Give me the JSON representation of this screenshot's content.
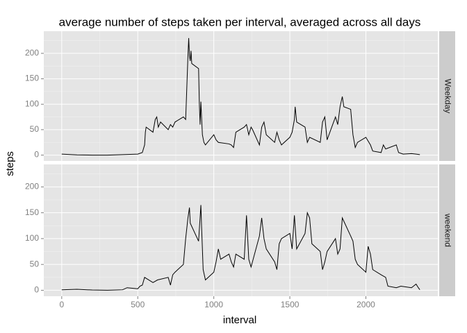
{
  "chart_data": {
    "type": "line",
    "title": "average number of steps taken per interval, averaged across all days",
    "x_label": "interval",
    "y_label": "steps",
    "xlim": [
      -118,
      2473
    ],
    "xticks": [
      0,
      500,
      1000,
      1500,
      2000
    ],
    "ylim": [
      -11.5,
      243.5
    ],
    "yticks": [
      0,
      50,
      100,
      150,
      200
    ],
    "grid": true,
    "color": "#000000",
    "panels": [
      {
        "label": "Weekday",
        "x": [
          0,
          100,
          200,
          300,
          400,
          500,
          530,
          545,
          550,
          555,
          600,
          615,
          625,
          635,
          650,
          700,
          715,
          730,
          745,
          800,
          815,
          830,
          835,
          840,
          845,
          850,
          855,
          900,
          905,
          910,
          915,
          925,
          935,
          945,
          1000,
          1015,
          1030,
          1100,
          1115,
          1130,
          1145,
          1200,
          1215,
          1230,
          1245,
          1255,
          1300,
          1315,
          1330,
          1345,
          1400,
          1415,
          1430,
          1445,
          1500,
          1515,
          1530,
          1535,
          1545,
          1600,
          1615,
          1630,
          1700,
          1715,
          1730,
          1745,
          1800,
          1815,
          1830,
          1845,
          1855,
          1900,
          1915,
          1930,
          1945,
          2000,
          2030,
          2045,
          2100,
          2115,
          2130,
          2200,
          2215,
          2245,
          2300,
          2330,
          2355
        ],
        "values": [
          2,
          0.5,
          0,
          0,
          1,
          2,
          5,
          20,
          45,
          55,
          45,
          70,
          75,
          55,
          65,
          50,
          60,
          55,
          65,
          75,
          70,
          195,
          230,
          195,
          185,
          205,
          180,
          170,
          100,
          60,
          105,
          40,
          25,
          20,
          40,
          30,
          25,
          22,
          20,
          15,
          45,
          55,
          60,
          40,
          55,
          50,
          20,
          55,
          65,
          40,
          25,
          45,
          30,
          20,
          35,
          45,
          70,
          95,
          65,
          55,
          25,
          35,
          25,
          65,
          75,
          30,
          75,
          60,
          95,
          115,
          95,
          90,
          40,
          15,
          25,
          35,
          20,
          8,
          5,
          20,
          12,
          20,
          5,
          2,
          3,
          2,
          1
        ]
      },
      {
        "label": "weekend",
        "x": [
          0,
          100,
          200,
          300,
          400,
          430,
          500,
          515,
          530,
          545,
          600,
          630,
          700,
          715,
          730,
          745,
          800,
          815,
          830,
          840,
          845,
          900,
          915,
          920,
          930,
          945,
          1000,
          1015,
          1030,
          1045,
          1100,
          1115,
          1130,
          1145,
          1200,
          1215,
          1230,
          1245,
          1300,
          1315,
          1330,
          1345,
          1400,
          1415,
          1430,
          1445,
          1500,
          1515,
          1530,
          1545,
          1600,
          1615,
          1630,
          1645,
          1700,
          1715,
          1730,
          1745,
          1800,
          1815,
          1830,
          1845,
          1900,
          1915,
          1930,
          1945,
          2000,
          2015,
          2030,
          2045,
          2100,
          2130,
          2145,
          2200,
          2230,
          2300,
          2330,
          2345,
          2355
        ],
        "values": [
          1,
          2,
          0.5,
          0,
          1,
          5,
          3,
          8,
          10,
          25,
          15,
          20,
          25,
          10,
          30,
          35,
          50,
          100,
          140,
          160,
          130,
          95,
          165,
          120,
          40,
          20,
          35,
          55,
          80,
          60,
          70,
          55,
          45,
          70,
          60,
          145,
          60,
          45,
          105,
          140,
          100,
          80,
          55,
          40,
          90,
          100,
          110,
          80,
          145,
          80,
          110,
          150,
          140,
          90,
          75,
          40,
          55,
          75,
          100,
          70,
          80,
          140,
          105,
          95,
          60,
          50,
          35,
          85,
          70,
          40,
          30,
          25,
          8,
          5,
          8,
          5,
          12,
          5,
          1
        ]
      }
    ]
  }
}
